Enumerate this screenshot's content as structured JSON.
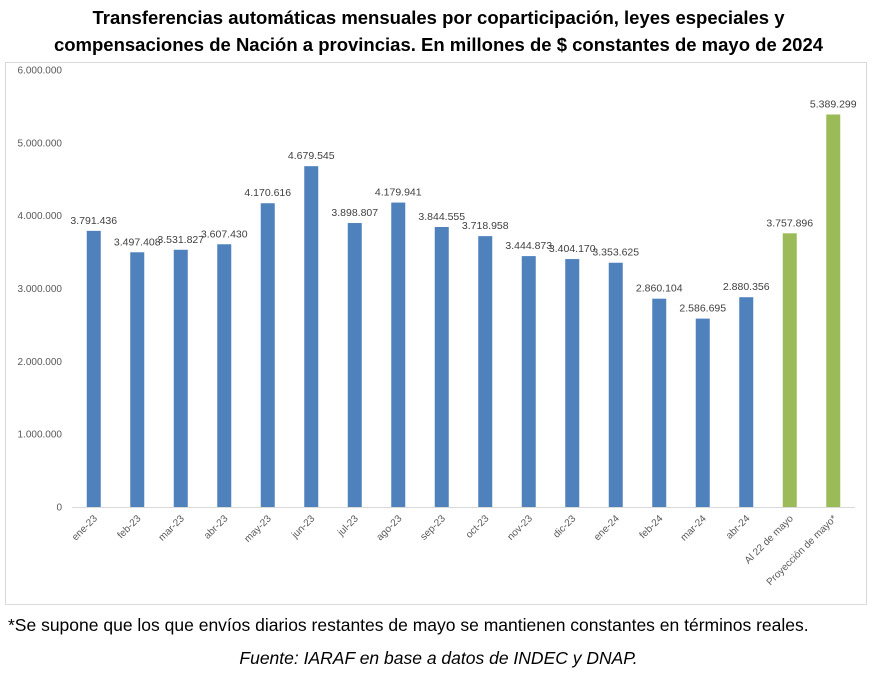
{
  "chart_title_line1": "Transferencias automáticas mensuales por coparticipación, leyes especiales y",
  "chart_title_line2": "compensaciones de Nación a provincias. En millones de $ constantes de mayo de 2024",
  "footnote": "*Se supone que los que envíos diarios restantes de mayo se mantienen constantes en términos reales.",
  "source": "Fuente: IARAF en base a datos de INDEC y DNAP.",
  "colors": {
    "actual": "#4f81bd",
    "projection": "#9bbb59"
  },
  "chart_data": {
    "type": "bar",
    "title": "Transferencias automáticas mensuales por coparticipación, leyes especiales y compensaciones de Nación a provincias. En millones de $ constantes de mayo de 2024",
    "categories": [
      "ene-23",
      "feb-23",
      "mar-23",
      "abr-23",
      "may-23",
      "jun-23",
      "jul-23",
      "ago-23",
      "sep-23",
      "oct-23",
      "nov-23",
      "dic-23",
      "ene-24",
      "feb-24",
      "mar-24",
      "abr-24",
      "Al 22 de mayo",
      "Proyección de mayo*"
    ],
    "values": [
      3791436,
      3497408,
      3531827,
      3607430,
      4170616,
      4679545,
      3898807,
      4179941,
      3844555,
      3718958,
      3444873,
      3404170,
      3353625,
      2860104,
      2586695,
      2880356,
      3757896,
      5389299
    ],
    "value_labels": [
      "3.791.436",
      "3.497.408",
      "3.531.827",
      "3.607.430",
      "4.170.616",
      "4.679.545",
      "3.898.807",
      "4.179.941",
      "3.844.555",
      "3.718.958",
      "3.444.873",
      "3.404.170",
      "3.353.625",
      "2.860.104",
      "2.586.695",
      "2.880.356",
      "3.757.896",
      "5.389.299"
    ],
    "bar_colors": [
      "actual",
      "actual",
      "actual",
      "actual",
      "actual",
      "actual",
      "actual",
      "actual",
      "actual",
      "actual",
      "actual",
      "actual",
      "actual",
      "actual",
      "actual",
      "actual",
      "projection",
      "projection"
    ],
    "yticks": [
      0,
      1000000,
      2000000,
      3000000,
      4000000,
      5000000,
      6000000
    ],
    "ytick_labels": [
      "0",
      "1.000.000",
      "2.000.000",
      "3.000.000",
      "4.000.000",
      "5.000.000",
      "6.000.000"
    ],
    "ylim": [
      0,
      6000000
    ],
    "grid": false,
    "legend": "none"
  }
}
